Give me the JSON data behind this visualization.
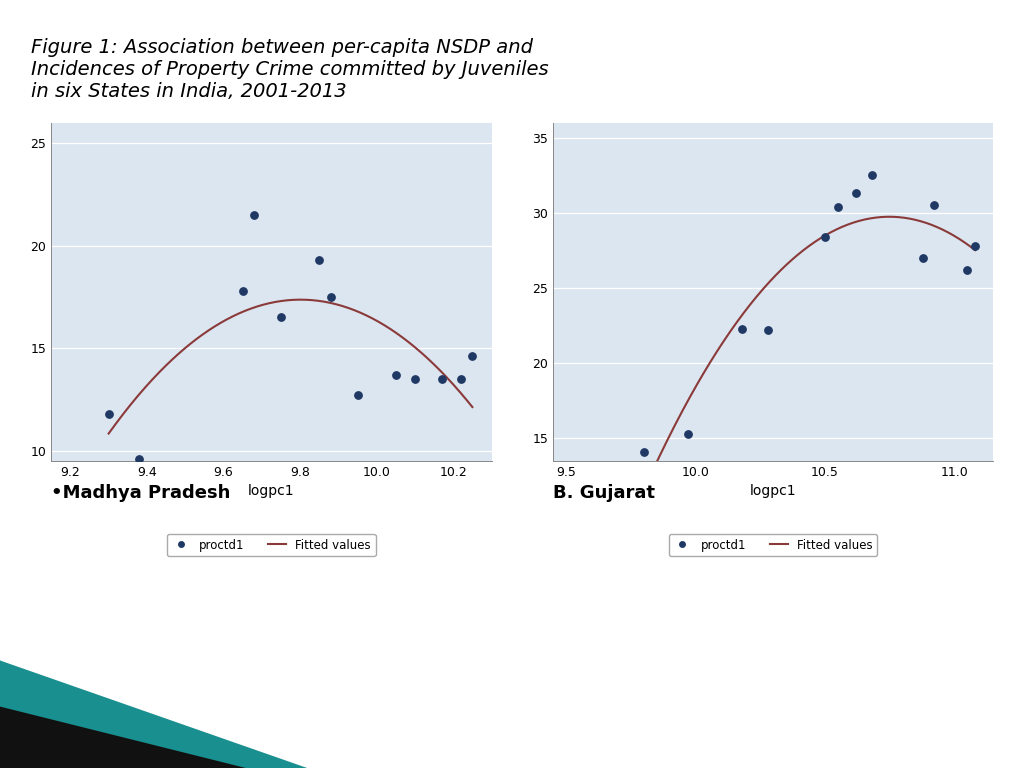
{
  "title": "Figure 1: Association between per-capita NSDP and\nIncidences of Property Crime committed by Juveniles\nin six States in India, 2001-2013",
  "title_fontsize": 14,
  "title_style": "italic",
  "bg_color": "#dce6f0",
  "panel_A": {
    "label": "•Madhya Pradesh",
    "scatter_x": [
      9.3,
      9.38,
      9.65,
      9.68,
      9.75,
      9.85,
      9.88,
      9.95,
      10.05,
      10.1,
      10.17,
      10.22,
      10.25
    ],
    "scatter_y": [
      11.8,
      9.6,
      17.8,
      21.5,
      16.5,
      19.3,
      17.5,
      12.7,
      13.7,
      13.5,
      13.5,
      13.5,
      14.6
    ],
    "dot_color": "#1f3864",
    "fit_color": "#8b3a3a",
    "fit_poly_deg": 2,
    "xlabel": "logpc1",
    "xlim": [
      9.15,
      10.3
    ],
    "ylim": [
      9.5,
      26
    ],
    "xticks": [
      9.2,
      9.4,
      9.6,
      9.8,
      10.0,
      10.2
    ],
    "yticks": [
      10,
      15,
      20,
      25
    ],
    "legend_labels": [
      "proctd1",
      "Fitted values"
    ]
  },
  "panel_B": {
    "label": "B. Gujarat",
    "scatter_x": [
      9.8,
      9.97,
      10.18,
      10.28,
      10.5,
      10.55,
      10.62,
      10.68,
      10.88,
      10.92,
      11.05,
      11.08
    ],
    "scatter_y": [
      14.1,
      15.3,
      22.3,
      22.2,
      28.4,
      30.4,
      31.3,
      32.5,
      27.0,
      30.5,
      26.2,
      27.8
    ],
    "dot_color": "#1f3864",
    "fit_color": "#8b3a3a",
    "fit_poly_deg": 2,
    "xlabel": "logpc1",
    "xlim": [
      9.45,
      11.15
    ],
    "ylim": [
      13.5,
      36
    ],
    "xticks": [
      9.5,
      10.0,
      10.5,
      11.0
    ],
    "yticks": [
      15,
      20,
      25,
      30,
      35
    ],
    "legend_labels": [
      "proctd1",
      "Fitted values"
    ]
  },
  "label_A": "•Madhya Pradesh",
  "label_B": "B. Gujarat",
  "bottom_tri_colors": [
    "#1a8f8f",
    "#111111",
    "#4dc8c8"
  ]
}
